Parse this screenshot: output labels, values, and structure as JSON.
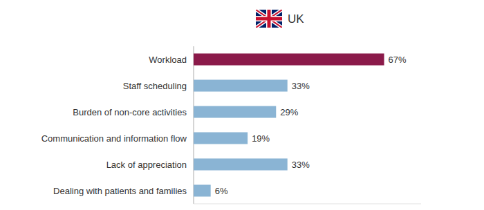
{
  "chart_data": {
    "type": "bar",
    "orientation": "horizontal",
    "title": "UK",
    "categories": [
      "Dealing with patients and families",
      "Lack of appreciation",
      "Communication and information flow",
      "Burden of non-core activities",
      "Staff scheduling",
      "Workload"
    ],
    "values": [
      6,
      33,
      19,
      29,
      33,
      67
    ],
    "value_labels": [
      "6%",
      "33%",
      "19%",
      "29%",
      "33%",
      "67%"
    ],
    "colors": [
      "#8ab4d4",
      "#8ab4d4",
      "#8ab4d4",
      "#8ab4d4",
      "#8ab4d4",
      "#8b1a4a"
    ],
    "xlim": [
      0,
      80
    ],
    "grid": false,
    "data_labels": true,
    "tick_labels": "y"
  }
}
